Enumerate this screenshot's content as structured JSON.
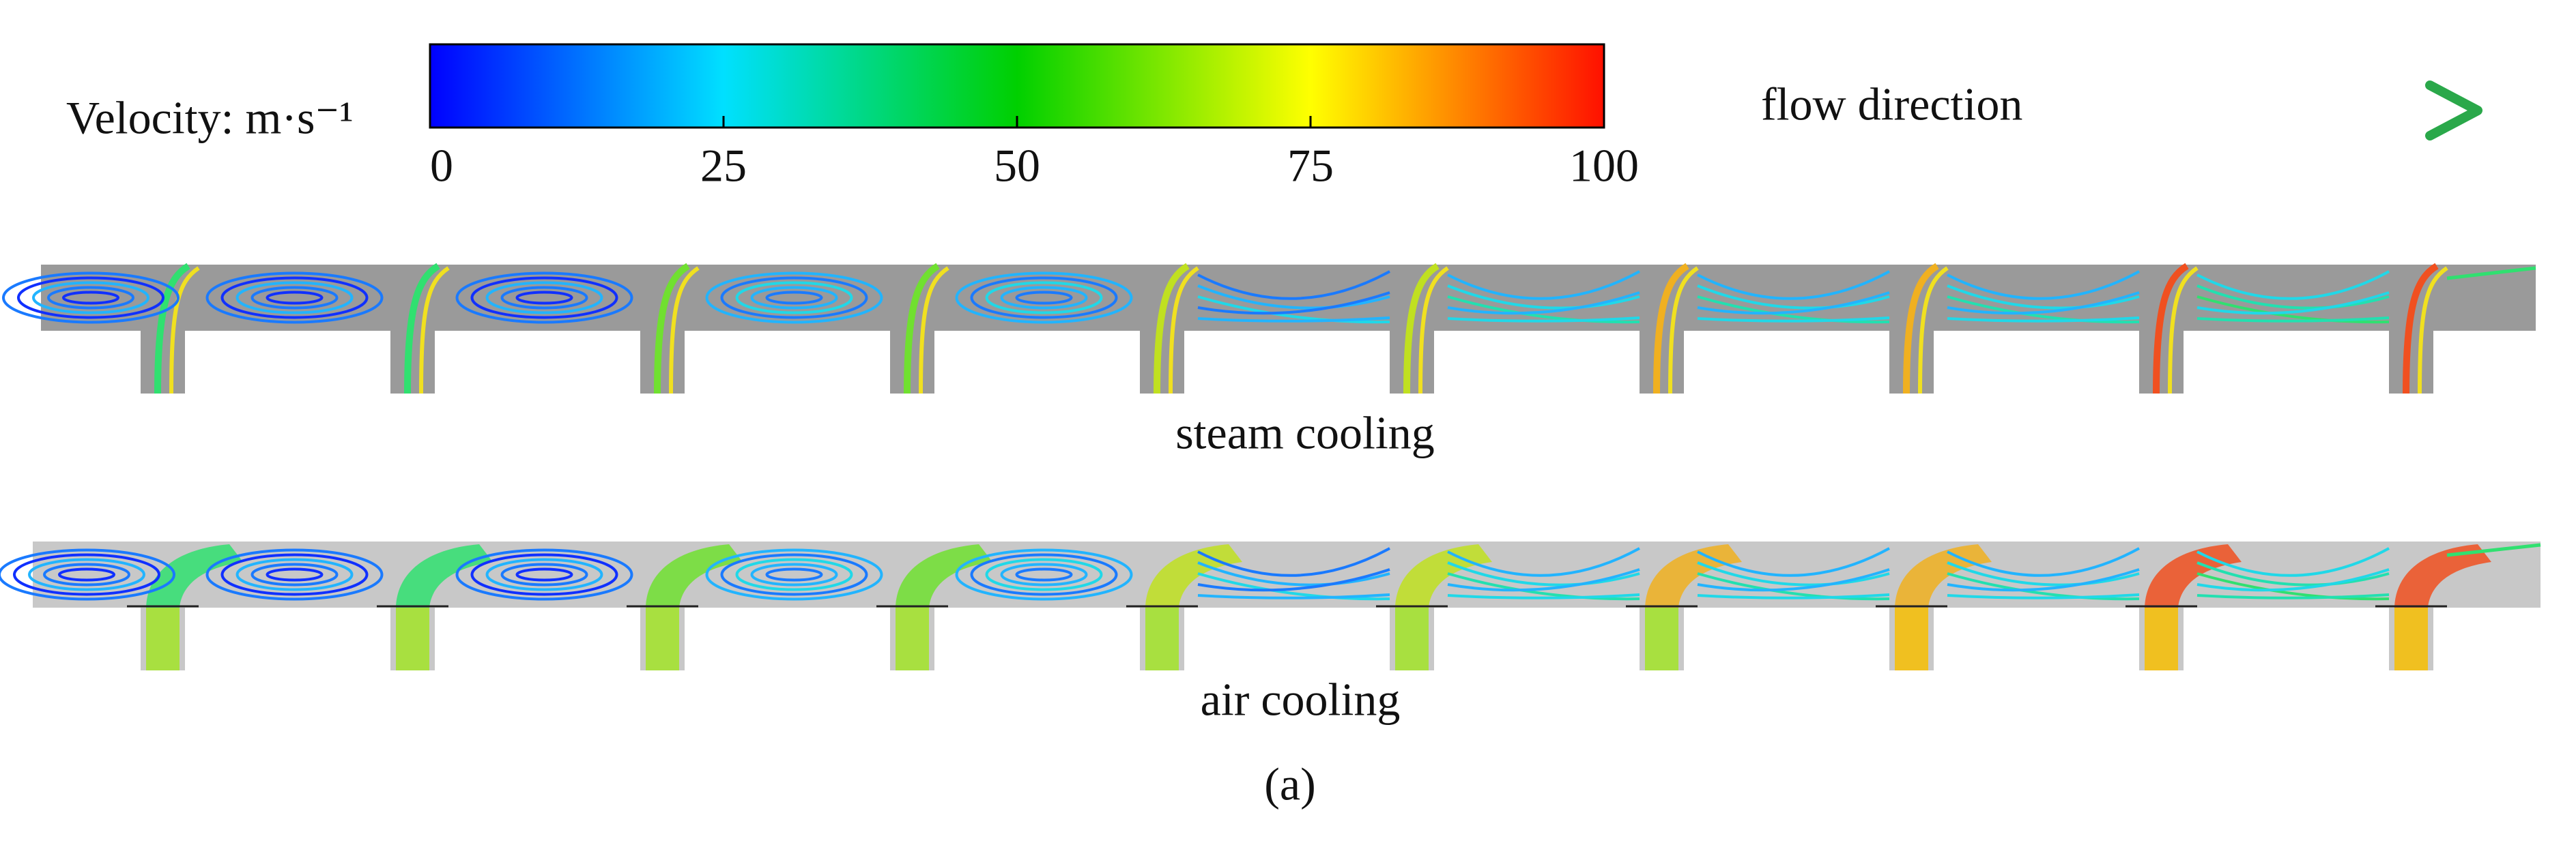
{
  "colorbar": {
    "title": "Velocity: m·s⁻¹",
    "lim": [
      0,
      100
    ],
    "ticks": [
      0,
      25,
      50,
      75,
      100
    ]
  },
  "flow_label": "flow direction",
  "panels": [
    {
      "label": "steam cooling"
    },
    {
      "label": "air cooling"
    }
  ],
  "caption": "(a)"
}
